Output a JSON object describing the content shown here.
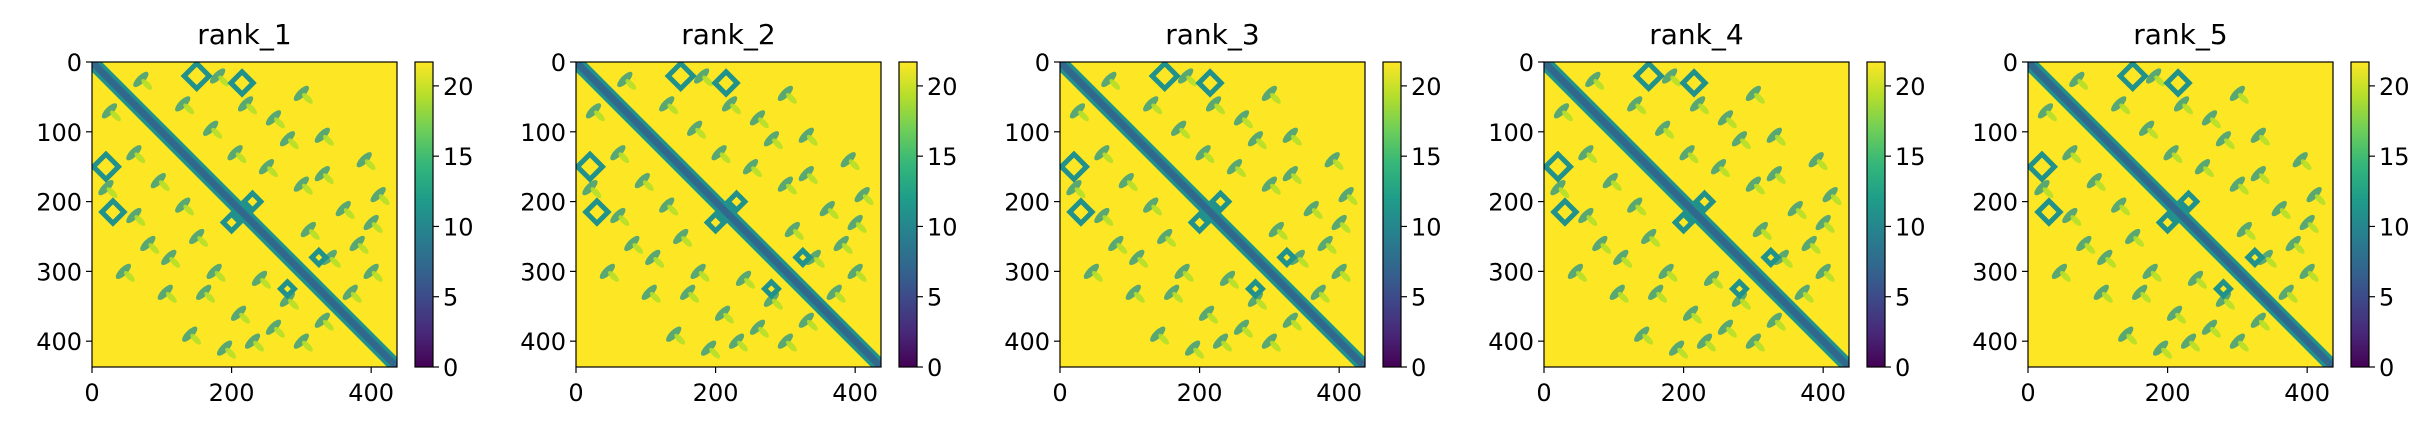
{
  "chart_data": [
    {
      "type": "heatmap",
      "title": "rank_1",
      "xlim": [
        0,
        437
      ],
      "ylim": [
        437,
        0
      ],
      "xticks": [
        0,
        200,
        400
      ],
      "yticks": [
        0,
        100,
        200,
        300,
        400
      ],
      "colorbar": {
        "range": [
          0,
          21.7
        ],
        "ticks": [
          0,
          5,
          10,
          15,
          20
        ],
        "colormap": "viridis"
      }
    },
    {
      "type": "heatmap",
      "title": "rank_2",
      "xlim": [
        0,
        437
      ],
      "ylim": [
        437,
        0
      ],
      "xticks": [
        0,
        200,
        400
      ],
      "yticks": [
        0,
        100,
        200,
        300,
        400
      ],
      "colorbar": {
        "range": [
          0,
          21.7
        ],
        "ticks": [
          0,
          5,
          10,
          15,
          20
        ],
        "colormap": "viridis"
      }
    },
    {
      "type": "heatmap",
      "title": "rank_3",
      "xlim": [
        0,
        437
      ],
      "ylim": [
        437,
        0
      ],
      "xticks": [
        0,
        200,
        400
      ],
      "yticks": [
        0,
        100,
        200,
        300,
        400
      ],
      "colorbar": {
        "range": [
          0,
          21.7
        ],
        "ticks": [
          0,
          5,
          10,
          15,
          20
        ],
        "colormap": "viridis"
      }
    },
    {
      "type": "heatmap",
      "title": "rank_4",
      "xlim": [
        0,
        437
      ],
      "ylim": [
        437,
        0
      ],
      "xticks": [
        0,
        200,
        400
      ],
      "yticks": [
        0,
        100,
        200,
        300,
        400
      ],
      "colorbar": {
        "range": [
          0,
          21.7
        ],
        "ticks": [
          0,
          5,
          10,
          15,
          20
        ],
        "colormap": "viridis"
      }
    },
    {
      "type": "heatmap",
      "title": "rank_5",
      "xlim": [
        0,
        437
      ],
      "ylim": [
        437,
        0
      ],
      "xticks": [
        0,
        200,
        400
      ],
      "yticks": [
        0,
        100,
        200,
        300,
        400
      ],
      "colorbar": {
        "range": [
          0,
          21.7
        ],
        "ticks": [
          0,
          5,
          10,
          15,
          20
        ],
        "colormap": "viridis"
      }
    }
  ],
  "colors": {
    "high": "#fde725",
    "low": "#440154",
    "band": "#31688e",
    "mid": "#21918c",
    "light": "#b5de2b"
  }
}
